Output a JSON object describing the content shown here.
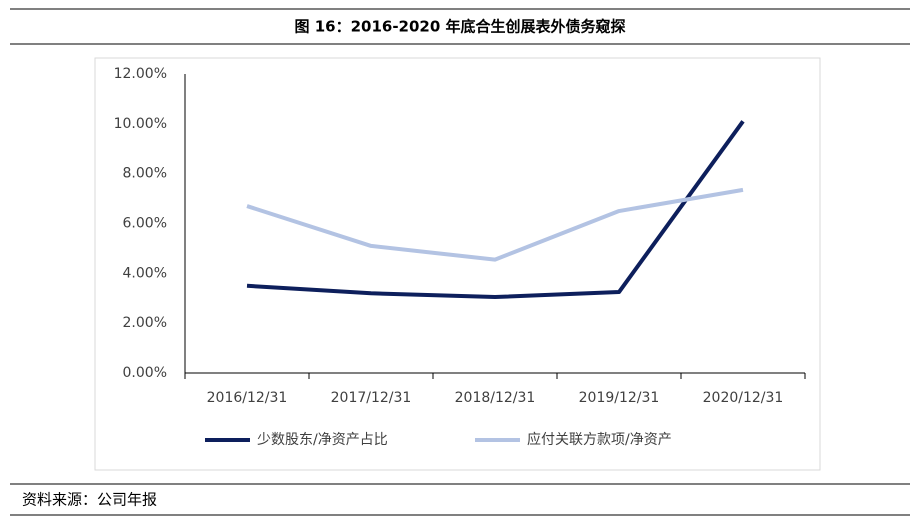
{
  "chart_data": {
    "type": "line",
    "title": "图 16：2016-2020 年底合生创展表外债务窥探",
    "categories": [
      "2016/12/31",
      "2017/12/31",
      "2018/12/31",
      "2019/12/31",
      "2020/12/31"
    ],
    "series": [
      {
        "name": "少数股东/净资产占比",
        "color": "#0d1f5c",
        "values": [
          3.5,
          3.2,
          3.05,
          3.25,
          10.1
        ]
      },
      {
        "name": "应付关联方款项/净资产",
        "color": "#b3c3e3",
        "values": [
          6.7,
          5.1,
          4.55,
          6.5,
          7.35
        ]
      }
    ],
    "ylim": [
      0,
      12
    ],
    "yticks": [
      {
        "value": 0,
        "label": "0.00%"
      },
      {
        "value": 2,
        "label": "2.00%"
      },
      {
        "value": 4,
        "label": "4.00%"
      },
      {
        "value": 6,
        "label": "6.00%"
      },
      {
        "value": 8,
        "label": "8.00%"
      },
      {
        "value": 10,
        "label": "10.00%"
      },
      {
        "value": 12,
        "label": "12.00%"
      }
    ],
    "grid": false,
    "legend": "bottom",
    "source": "资料来源：公司年报"
  }
}
